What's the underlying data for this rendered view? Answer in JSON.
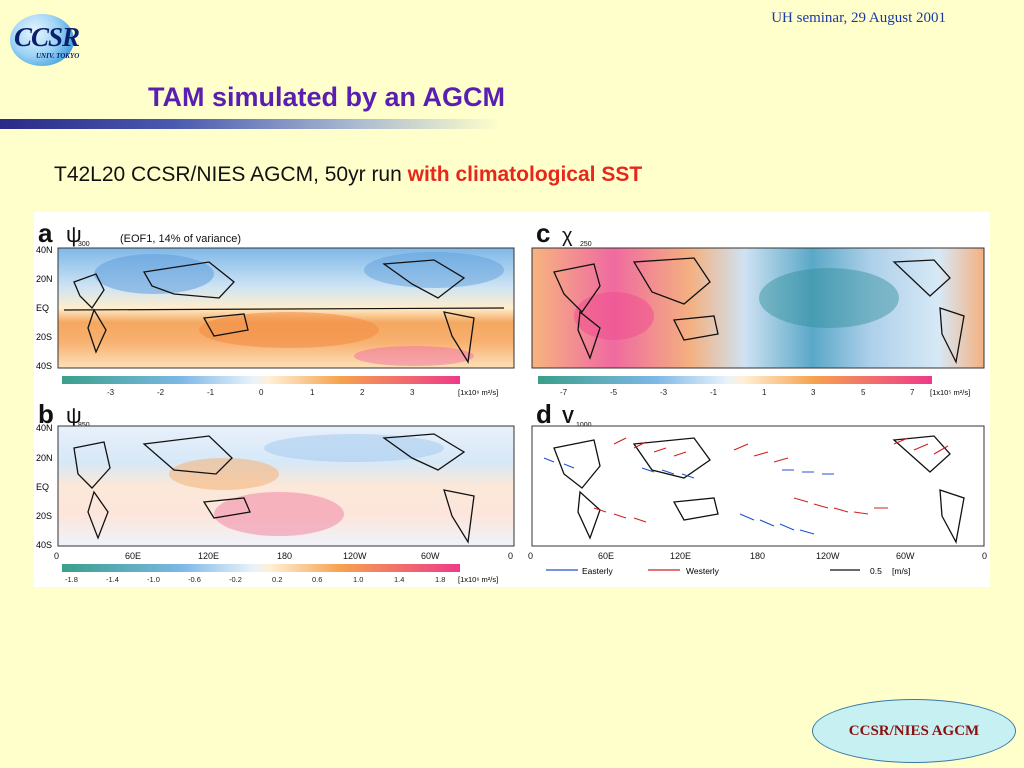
{
  "logo": {
    "name": "CCSR",
    "sub": "UNIV. TOKYO"
  },
  "header": {
    "seminar": "UH seminar, 29 August 2001"
  },
  "title": "TAM simulated by an AGCM",
  "subtitle": {
    "prefix": "T42L20 CCSR/NIES AGCM, 50yr run ",
    "highlight": "with climatological SST"
  },
  "badge": "CCSR/NIES AGCM",
  "colors": {
    "background": "#ffffcc",
    "title": "#5a1fb0",
    "highlight": "#e8271c",
    "easterly": "#2050d0",
    "westerly": "#d02020"
  },
  "figure": {
    "lat_labels": [
      "40N",
      "20N",
      "EQ",
      "20S",
      "40S"
    ],
    "lon_labels": [
      "0",
      "60E",
      "120E",
      "180",
      "120W",
      "60W",
      "0"
    ],
    "panels": {
      "a": {
        "letter": "a",
        "symbol": "ψ",
        "level": "300",
        "note": "(EOF1, 14% of variance)",
        "colorbar": [
          "-3",
          "-2",
          "-1",
          "0",
          "1",
          "2",
          "3"
        ],
        "unit": "[1x10⁶ m²/s]"
      },
      "b": {
        "letter": "b",
        "symbol": "ψ",
        "level": "850",
        "colorbar": [
          "-1.8",
          "-1.4",
          "-1.0",
          "-0.6",
          "-0.2",
          "0.2",
          "0.6",
          "1.0",
          "1.4",
          "1.8"
        ],
        "unit": "[1x10⁶ m²/s]"
      },
      "c": {
        "letter": "c",
        "symbol": "χ",
        "level": "250",
        "colorbar": [
          "-7",
          "-5",
          "-3",
          "-1",
          "1",
          "3",
          "5",
          "7"
        ],
        "unit": "[1x10⁵ m²/s]"
      },
      "d": {
        "letter": "d",
        "symbol": "V",
        "level": "1000",
        "legend": {
          "easterly": "Easterly",
          "westerly": "Westerly",
          "scale": "0.5",
          "unit": "[m/s]"
        }
      }
    }
  }
}
